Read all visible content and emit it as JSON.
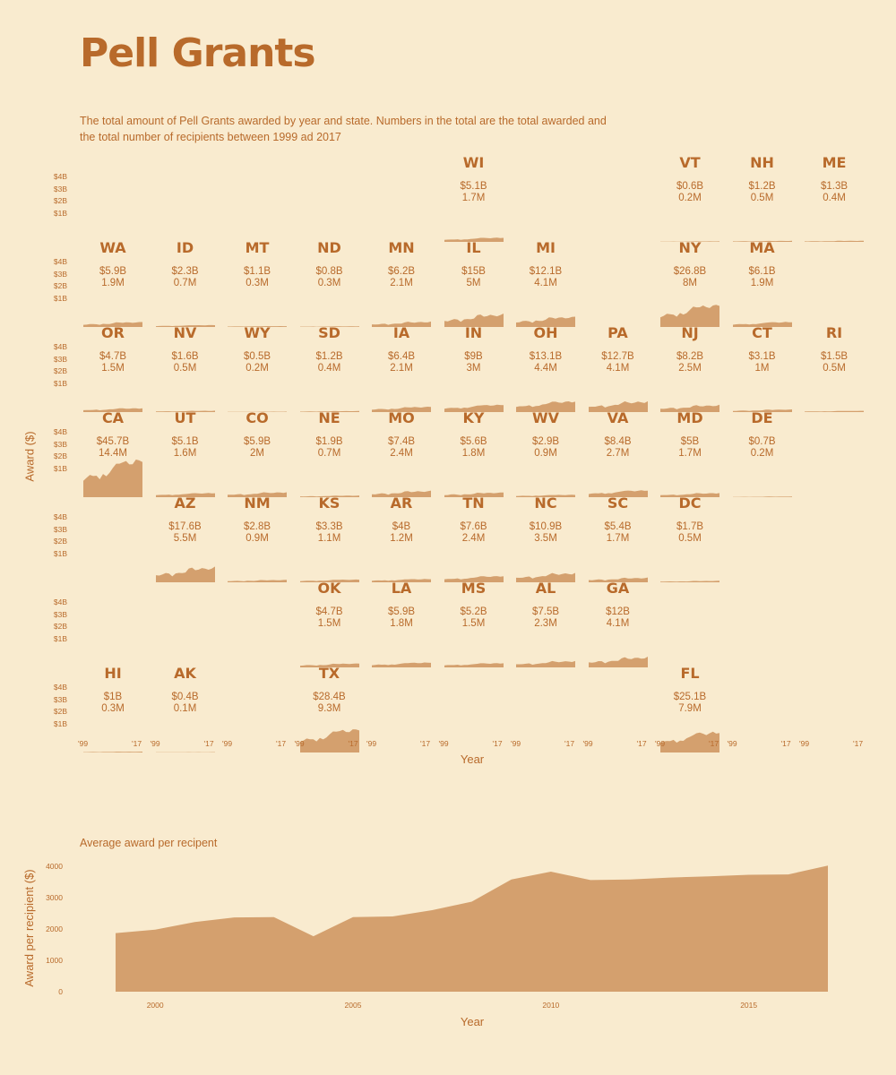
{
  "title": "Pell Grants",
  "subtitle": "The total amount of Pell Grants awarded by year and state. Numbers in the total are the total awarded and the total number of recipients between 1999 ad 2017",
  "colors": {
    "background": "#f9ebcf",
    "accent": "#b86a2b",
    "fill": "#d4a06e"
  },
  "chart_data": [
    {
      "type": "area",
      "title": "Pell Grants",
      "ylabel": "Award ($)",
      "xlabel": "Year",
      "y_ticks": [
        "$4B",
        "$3B",
        "$2B",
        "$1B"
      ],
      "ylim": [
        0,
        4
      ],
      "x_ticks": [
        "'99",
        "'17"
      ],
      "states": [
        {
          "abbr": "WI",
          "row": 0,
          "col": 5,
          "amount": "$5.1B",
          "recipients": "1.7M",
          "total": 5.1
        },
        {
          "abbr": "VT",
          "row": 0,
          "col": 8,
          "amount": "$0.6B",
          "recipients": "0.2M",
          "total": 0.6
        },
        {
          "abbr": "NH",
          "row": 0,
          "col": 9,
          "amount": "$1.2B",
          "recipients": "0.5M",
          "total": 1.2
        },
        {
          "abbr": "ME",
          "row": 0,
          "col": 10,
          "amount": "$1.3B",
          "recipients": "0.4M",
          "total": 1.3
        },
        {
          "abbr": "WA",
          "row": 1,
          "col": 0,
          "amount": "$5.9B",
          "recipients": "1.9M",
          "total": 5.9
        },
        {
          "abbr": "ID",
          "row": 1,
          "col": 1,
          "amount": "$2.3B",
          "recipients": "0.7M",
          "total": 2.3
        },
        {
          "abbr": "MT",
          "row": 1,
          "col": 2,
          "amount": "$1.1B",
          "recipients": "0.3M",
          "total": 1.1
        },
        {
          "abbr": "ND",
          "row": 1,
          "col": 3,
          "amount": "$0.8B",
          "recipients": "0.3M",
          "total": 0.8
        },
        {
          "abbr": "MN",
          "row": 1,
          "col": 4,
          "amount": "$6.2B",
          "recipients": "2.1M",
          "total": 6.2
        },
        {
          "abbr": "IL",
          "row": 1,
          "col": 5,
          "amount": "$15B",
          "recipients": "5M",
          "total": 15
        },
        {
          "abbr": "MI",
          "row": 1,
          "col": 6,
          "amount": "$12.1B",
          "recipients": "4.1M",
          "total": 12.1
        },
        {
          "abbr": "NY",
          "row": 1,
          "col": 8,
          "amount": "$26.8B",
          "recipients": "8M",
          "total": 26.8
        },
        {
          "abbr": "MA",
          "row": 1,
          "col": 9,
          "amount": "$6.1B",
          "recipients": "1.9M",
          "total": 6.1
        },
        {
          "abbr": "OR",
          "row": 2,
          "col": 0,
          "amount": "$4.7B",
          "recipients": "1.5M",
          "total": 4.7
        },
        {
          "abbr": "NV",
          "row": 2,
          "col": 1,
          "amount": "$1.6B",
          "recipients": "0.5M",
          "total": 1.6
        },
        {
          "abbr": "WY",
          "row": 2,
          "col": 2,
          "amount": "$0.5B",
          "recipients": "0.2M",
          "total": 0.5
        },
        {
          "abbr": "SD",
          "row": 2,
          "col": 3,
          "amount": "$1.2B",
          "recipients": "0.4M",
          "total": 1.2
        },
        {
          "abbr": "IA",
          "row": 2,
          "col": 4,
          "amount": "$6.4B",
          "recipients": "2.1M",
          "total": 6.4
        },
        {
          "abbr": "IN",
          "row": 2,
          "col": 5,
          "amount": "$9B",
          "recipients": "3M",
          "total": 9
        },
        {
          "abbr": "OH",
          "row": 2,
          "col": 6,
          "amount": "$13.1B",
          "recipients": "4.4M",
          "total": 13.1
        },
        {
          "abbr": "PA",
          "row": 2,
          "col": 7,
          "amount": "$12.7B",
          "recipients": "4.1M",
          "total": 12.7
        },
        {
          "abbr": "NJ",
          "row": 2,
          "col": 8,
          "amount": "$8.2B",
          "recipients": "2.5M",
          "total": 8.2
        },
        {
          "abbr": "CT",
          "row": 2,
          "col": 9,
          "amount": "$3.1B",
          "recipients": "1M",
          "total": 3.1
        },
        {
          "abbr": "RI",
          "row": 2,
          "col": 10,
          "amount": "$1.5B",
          "recipients": "0.5M",
          "total": 1.5
        },
        {
          "abbr": "CA",
          "row": 3,
          "col": 0,
          "amount": "$45.7B",
          "recipients": "14.4M",
          "total": 45.7
        },
        {
          "abbr": "UT",
          "row": 3,
          "col": 1,
          "amount": "$5.1B",
          "recipients": "1.6M",
          "total": 5.1
        },
        {
          "abbr": "CO",
          "row": 3,
          "col": 2,
          "amount": "$5.9B",
          "recipients": "2M",
          "total": 5.9
        },
        {
          "abbr": "NE",
          "row": 3,
          "col": 3,
          "amount": "$1.9B",
          "recipients": "0.7M",
          "total": 1.9
        },
        {
          "abbr": "MO",
          "row": 3,
          "col": 4,
          "amount": "$7.4B",
          "recipients": "2.4M",
          "total": 7.4
        },
        {
          "abbr": "KY",
          "row": 3,
          "col": 5,
          "amount": "$5.6B",
          "recipients": "1.8M",
          "total": 5.6
        },
        {
          "abbr": "WV",
          "row": 3,
          "col": 6,
          "amount": "$2.9B",
          "recipients": "0.9M",
          "total": 2.9
        },
        {
          "abbr": "VA",
          "row": 3,
          "col": 7,
          "amount": "$8.4B",
          "recipients": "2.7M",
          "total": 8.4
        },
        {
          "abbr": "MD",
          "row": 3,
          "col": 8,
          "amount": "$5B",
          "recipients": "1.7M",
          "total": 5
        },
        {
          "abbr": "DE",
          "row": 3,
          "col": 9,
          "amount": "$0.7B",
          "recipients": "0.2M",
          "total": 0.7
        },
        {
          "abbr": "AZ",
          "row": 4,
          "col": 1,
          "amount": "$17.6B",
          "recipients": "5.5M",
          "total": 17.6
        },
        {
          "abbr": "NM",
          "row": 4,
          "col": 2,
          "amount": "$2.8B",
          "recipients": "0.9M",
          "total": 2.8
        },
        {
          "abbr": "KS",
          "row": 4,
          "col": 3,
          "amount": "$3.3B",
          "recipients": "1.1M",
          "total": 3.3
        },
        {
          "abbr": "AR",
          "row": 4,
          "col": 4,
          "amount": "$4B",
          "recipients": "1.2M",
          "total": 4
        },
        {
          "abbr": "TN",
          "row": 4,
          "col": 5,
          "amount": "$7.6B",
          "recipients": "2.4M",
          "total": 7.6
        },
        {
          "abbr": "NC",
          "row": 4,
          "col": 6,
          "amount": "$10.9B",
          "recipients": "3.5M",
          "total": 10.9
        },
        {
          "abbr": "SC",
          "row": 4,
          "col": 7,
          "amount": "$5.4B",
          "recipients": "1.7M",
          "total": 5.4
        },
        {
          "abbr": "DC",
          "row": 4,
          "col": 8,
          "amount": "$1.7B",
          "recipients": "0.5M",
          "total": 1.7
        },
        {
          "abbr": "OK",
          "row": 5,
          "col": 3,
          "amount": "$4.7B",
          "recipients": "1.5M",
          "total": 4.7
        },
        {
          "abbr": "LA",
          "row": 5,
          "col": 4,
          "amount": "$5.9B",
          "recipients": "1.8M",
          "total": 5.9
        },
        {
          "abbr": "MS",
          "row": 5,
          "col": 5,
          "amount": "$5.2B",
          "recipients": "1.5M",
          "total": 5.2
        },
        {
          "abbr": "AL",
          "row": 5,
          "col": 6,
          "amount": "$7.5B",
          "recipients": "2.3M",
          "total": 7.5
        },
        {
          "abbr": "GA",
          "row": 5,
          "col": 7,
          "amount": "$12B",
          "recipients": "4.1M",
          "total": 12
        },
        {
          "abbr": "HI",
          "row": 6,
          "col": 0,
          "amount": "$1B",
          "recipients": "0.3M",
          "total": 1
        },
        {
          "abbr": "AK",
          "row": 6,
          "col": 1,
          "amount": "$0.4B",
          "recipients": "0.1M",
          "total": 0.4
        },
        {
          "abbr": "TX",
          "row": 6,
          "col": 3,
          "amount": "$28.4B",
          "recipients": "9.3M",
          "total": 28.4
        },
        {
          "abbr": "FL",
          "row": 6,
          "col": 8,
          "amount": "$25.1B",
          "recipients": "7.9M",
          "total": 25.1
        }
      ]
    },
    {
      "type": "area",
      "title": "Average award per recipent",
      "xlabel": "Year",
      "ylabel": "Award per recipient ($)",
      "x": [
        1999,
        2000,
        2001,
        2002,
        2003,
        2004,
        2005,
        2006,
        2007,
        2008,
        2009,
        2010,
        2011,
        2012,
        2013,
        2014,
        2015,
        2016,
        2017
      ],
      "values": [
        1870,
        1980,
        2220,
        2370,
        2380,
        1770,
        2380,
        2400,
        2600,
        2870,
        3580,
        3830,
        3560,
        3580,
        3640,
        3680,
        3730,
        3740,
        4020
      ],
      "ylim": [
        0,
        4200
      ],
      "xlim": [
        1999,
        2017
      ],
      "y_ticks": [
        0,
        1000,
        2000,
        3000,
        4000
      ],
      "x_ticks": [
        2000,
        2005,
        2010,
        2015
      ]
    }
  ]
}
